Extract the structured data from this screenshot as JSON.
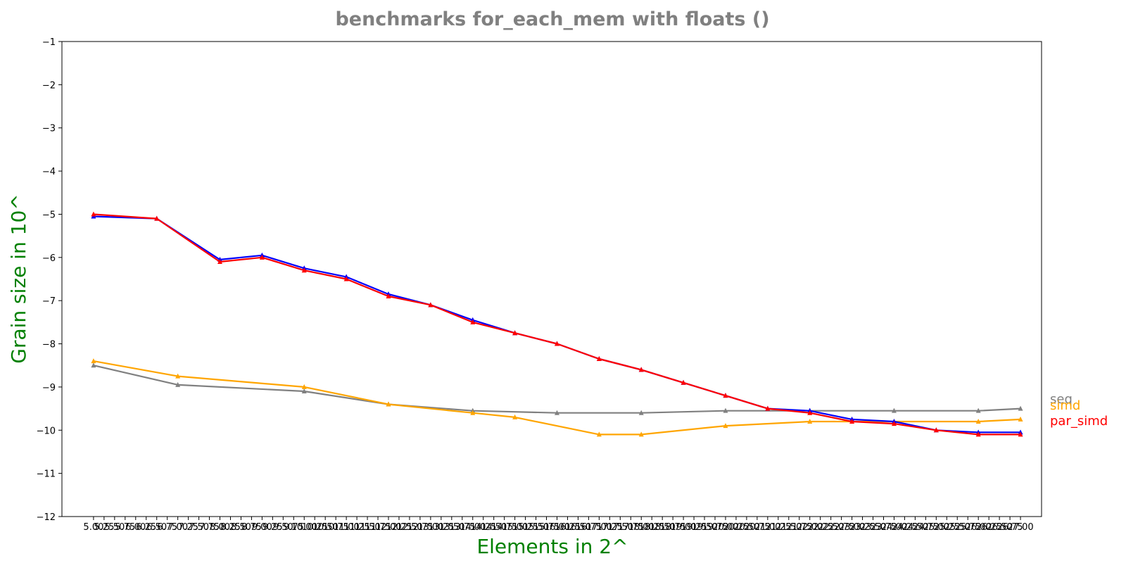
{
  "chart_data": {
    "type": "line",
    "title": "benchmarks for_each_mem with floats  ()",
    "xlabel": "Elements in 2^",
    "ylabel": "Grain size in 10^",
    "xlim": [
      4.25,
      27.5
    ],
    "ylim": [
      -12,
      -1
    ],
    "yticks": [
      -1,
      -2,
      -3,
      -4,
      -5,
      -6,
      -7,
      -8,
      -9,
      -10,
      -11,
      -12
    ],
    "xtick_start": 5.0,
    "xtick_step": 0.25,
    "xtick_count": 89,
    "legend_position": "right",
    "series": [
      {
        "name": "seq",
        "color": "#808080",
        "x": [
          5.0,
          7.0,
          10.0,
          12.0,
          14.0,
          16.0,
          18.0,
          20.0,
          22.0,
          24.0,
          26.0,
          27.0
        ],
        "y": [
          -8.5,
          -8.95,
          -9.1,
          -9.4,
          -9.55,
          -9.6,
          -9.6,
          -9.55,
          -9.55,
          -9.55,
          -9.55,
          -9.5
        ]
      },
      {
        "name": "simd",
        "color": "#ffa500",
        "x": [
          5.0,
          7.0,
          10.0,
          12.0,
          14.0,
          15.0,
          17.0,
          18.0,
          20.0,
          22.0,
          24.0,
          26.0,
          27.0
        ],
        "y": [
          -8.4,
          -8.75,
          -9.0,
          -9.4,
          -9.6,
          -9.7,
          -10.1,
          -10.1,
          -9.9,
          -9.8,
          -9.8,
          -9.8,
          -9.75
        ]
      },
      {
        "name": "par_simd",
        "color": "#ff0000",
        "x": [
          5.0,
          6.5,
          8.0,
          9.0,
          10.0,
          11.0,
          12.0,
          13.0,
          14.0,
          15.0,
          16.0,
          17.0,
          18.0,
          19.0,
          20.0,
          21.0,
          22.0,
          23.0,
          24.0,
          25.0,
          26.0,
          27.0
        ],
        "y": [
          -5.0,
          -5.1,
          -6.1,
          -6.0,
          -6.3,
          -6.5,
          -6.9,
          -7.1,
          -7.5,
          -7.75,
          -8.0,
          -8.35,
          -8.6,
          -8.9,
          -9.2,
          -9.5,
          -9.6,
          -9.8,
          -9.85,
          -10.0,
          -10.1,
          -10.1
        ]
      },
      {
        "name": "",
        "color": "#0000ff",
        "x": [
          5.0,
          6.5,
          8.0,
          9.0,
          10.0,
          11.0,
          12.0,
          13.0,
          14.0,
          15.0,
          16.0,
          17.0,
          18.0,
          19.0,
          20.0,
          21.0,
          22.0,
          23.0,
          24.0,
          25.0,
          26.0,
          27.0
        ],
        "y": [
          -5.05,
          -5.1,
          -6.05,
          -5.95,
          -6.25,
          -6.45,
          -6.85,
          -7.1,
          -7.45,
          -7.75,
          -8.0,
          -8.35,
          -8.6,
          -8.9,
          -9.2,
          -9.5,
          -9.55,
          -9.75,
          -9.8,
          -10.0,
          -10.05,
          -10.05
        ]
      }
    ]
  }
}
